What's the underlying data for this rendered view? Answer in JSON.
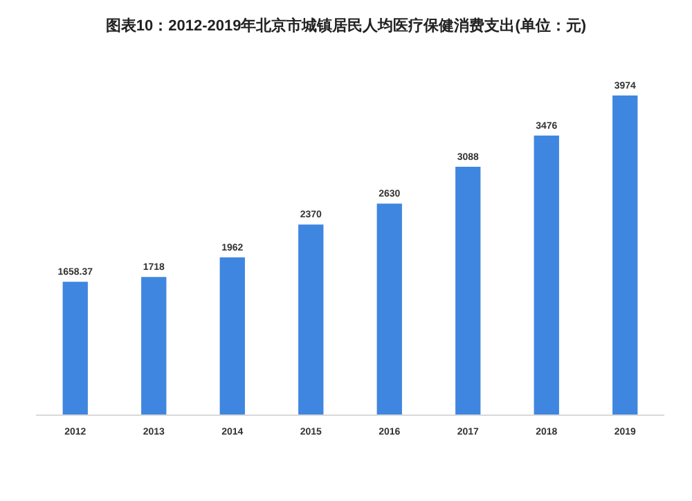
{
  "chart_data": {
    "type": "bar",
    "title": "图表10：2012-2019年北京市城镇居民人均医疗保健消费支出(单位：元)",
    "categories": [
      "2012",
      "2013",
      "2014",
      "2015",
      "2016",
      "2017",
      "2018",
      "2019"
    ],
    "values": [
      1658.37,
      1718,
      1962,
      2370,
      2630,
      3088,
      3476,
      3974
    ],
    "value_labels": [
      "1658.37",
      "1718",
      "1962",
      "2370",
      "2630",
      "3088",
      "3476",
      "3974"
    ],
    "color": "#3f86e0",
    "grid": false
  }
}
